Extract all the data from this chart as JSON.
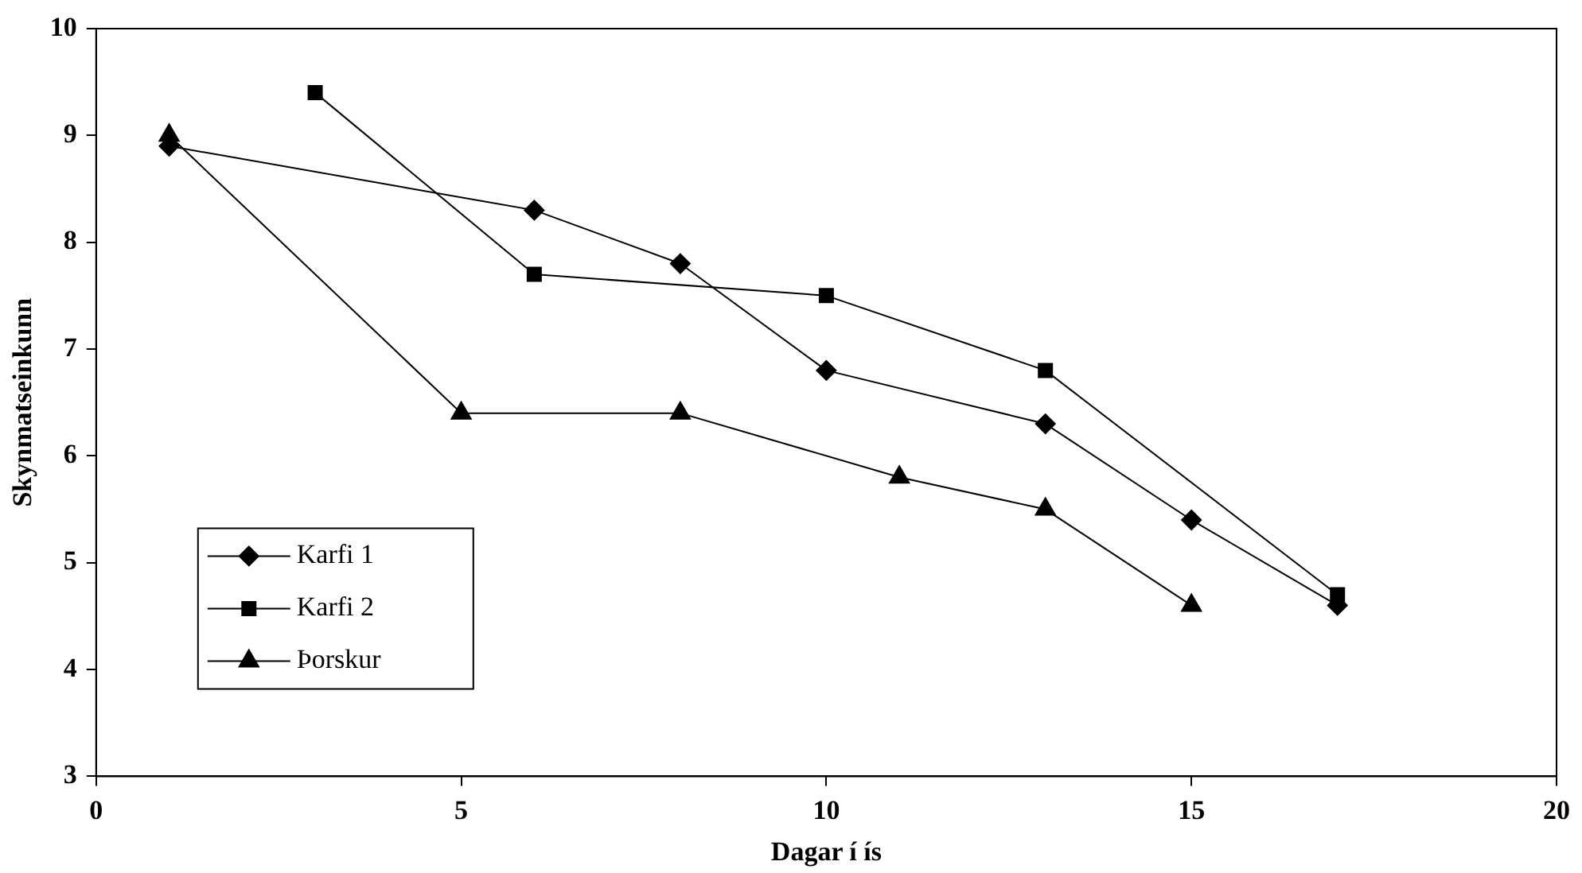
{
  "chart_data": {
    "type": "line",
    "xlabel": "Dagar í ís",
    "ylabel": "Skynmatseinkunn",
    "xlim": [
      0,
      20
    ],
    "xticks": [
      0,
      5,
      10,
      15,
      20
    ],
    "ylim": [
      3,
      10
    ],
    "yticks": [
      3,
      4,
      5,
      6,
      7,
      8,
      9,
      10
    ],
    "grid": false,
    "legend": "bottom left",
    "line_style": "solid",
    "series": [
      {
        "name": "Karfi 1",
        "color": "#000000",
        "marker": "diamond",
        "x": [
          1,
          6,
          8,
          10,
          13,
          15,
          17
        ],
        "values": [
          8.9,
          8.3,
          7.8,
          6.8,
          6.3,
          5.4,
          4.6
        ]
      },
      {
        "name": "Karfi 2",
        "color": "#000000",
        "marker": "square",
        "x": [
          3,
          6,
          10,
          13,
          17
        ],
        "values": [
          9.4,
          7.7,
          7.5,
          6.8,
          4.7
        ]
      },
      {
        "name": "Þorskur",
        "color": "#000000",
        "marker": "triangle",
        "x": [
          1,
          5,
          8,
          11,
          13,
          15
        ],
        "values": [
          9.0,
          6.4,
          6.4,
          5.8,
          5.5,
          4.6
        ]
      }
    ]
  }
}
